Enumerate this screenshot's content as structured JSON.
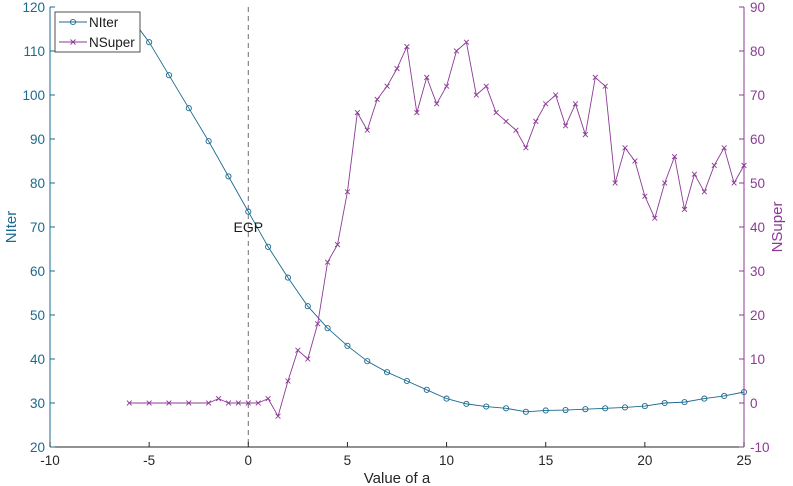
{
  "chart_data": {
    "type": "line",
    "xlabel": "Value of a",
    "ylabel_left": "NIter",
    "ylabel_right": "NSuper",
    "xlim": [
      -10,
      25
    ],
    "ylim_left": [
      20,
      120
    ],
    "ylim_right": [
      -10,
      90
    ],
    "x_ticks": [
      -10,
      -5,
      0,
      5,
      10,
      15,
      20,
      25
    ],
    "y_ticks_left": [
      20,
      30,
      40,
      50,
      60,
      70,
      80,
      90,
      100,
      110,
      120
    ],
    "y_ticks_right": [
      -10,
      0,
      10,
      20,
      30,
      40,
      50,
      60,
      70,
      80,
      90
    ],
    "legend": {
      "position": "top-left",
      "entries": [
        "NIter",
        "NSuper"
      ]
    },
    "annotations": [
      {
        "text": "EGP",
        "x": 0,
        "y": 70
      }
    ],
    "vline": {
      "x": 0,
      "style": "dashed"
    },
    "colors": {
      "niter": "#1b6a8f",
      "nsuper": "#8c3a96",
      "axis": "#262626"
    },
    "series": [
      {
        "name": "NIter",
        "axis": "left",
        "marker": "circle",
        "x": [
          -6,
          -5,
          -4,
          -3,
          -2,
          -1,
          0,
          1,
          2,
          3,
          4,
          5,
          6,
          7,
          8,
          9,
          10,
          11,
          12,
          13,
          14,
          15,
          16,
          17,
          18,
          19,
          20,
          21,
          22,
          23,
          24,
          25
        ],
        "y": [
          118,
          112,
          104.5,
          97,
          89.5,
          81.5,
          73.5,
          65.5,
          58.5,
          52,
          47,
          43,
          39.5,
          37,
          35,
          33,
          31,
          29.8,
          29.2,
          28.8,
          28,
          28.3,
          28.4,
          28.6,
          28.8,
          29,
          29.3,
          30,
          30.2,
          31,
          31.6,
          32.5
        ]
      },
      {
        "name": "NSuper",
        "axis": "right",
        "marker": "x",
        "x": [
          -6,
          -5,
          -4,
          -3,
          -2,
          -1.5,
          -1,
          -0.5,
          0,
          0.5,
          1,
          1.5,
          2,
          2.5,
          3,
          3.5,
          4,
          4.5,
          5,
          5.5,
          6,
          6.5,
          7,
          7.5,
          8,
          8.5,
          9,
          9.5,
          10,
          10.5,
          11,
          11.5,
          12,
          12.5,
          13,
          13.5,
          14,
          14.5,
          15,
          15.5,
          16,
          16.5,
          17,
          17.5,
          18,
          18.5,
          19,
          19.5,
          20,
          20.5,
          21,
          21.5,
          22,
          22.5,
          23,
          23.5,
          24,
          24.5,
          25
        ],
        "y": [
          0,
          0,
          0,
          0,
          0,
          1,
          0,
          0,
          0,
          0,
          1,
          -3,
          5,
          12,
          10,
          18,
          32,
          36,
          48,
          66,
          62,
          69,
          72,
          76,
          81,
          66,
          74,
          68,
          72,
          80,
          82,
          70,
          72,
          66,
          64,
          62,
          58,
          64,
          68,
          70,
          63,
          68,
          61,
          74,
          72,
          50,
          58,
          55,
          47,
          42,
          50,
          56,
          44,
          52,
          48,
          54,
          58,
          50,
          54
        ]
      }
    ]
  }
}
